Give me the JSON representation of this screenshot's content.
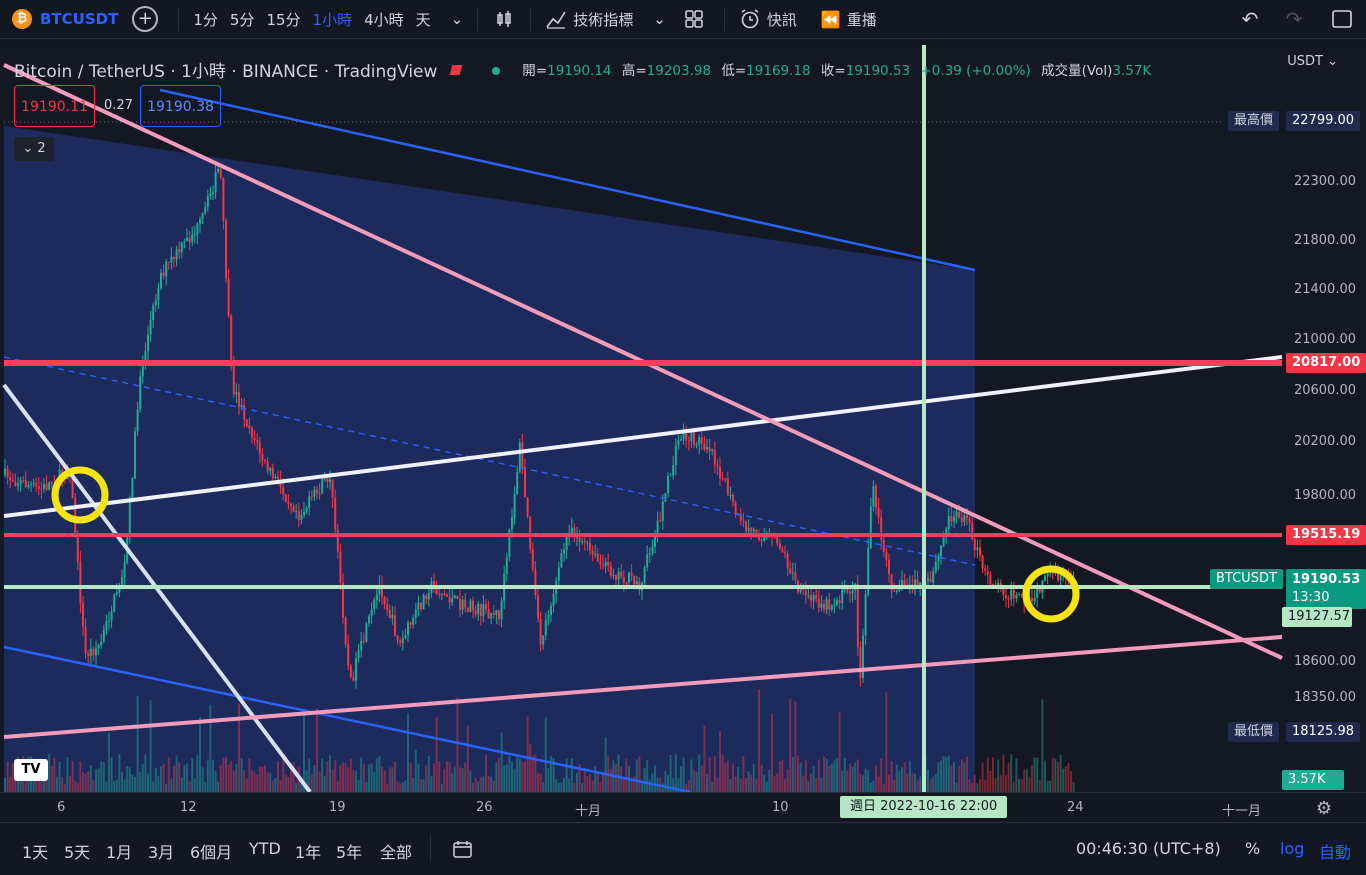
{
  "toolbar": {
    "symbol": "BTCUSDT",
    "coin_glyph": "₿",
    "intervals": [
      "1分",
      "5分",
      "15分",
      "1小時",
      "4小時",
      "天"
    ],
    "active_interval": "1小時",
    "indicators_label": "技術指標",
    "alert_label": "快訊",
    "replay_label": "重播"
  },
  "legend": {
    "title": "Bitcoin / TetherUS · 1小時 · BINANCE · TradingView",
    "ohlc": {
      "open_label": "開=",
      "open": "19190.14",
      "high_label": "高=",
      "high": "19203.98",
      "low_label": "低=",
      "low": "19169.18",
      "close_label": "收=",
      "close": "19190.53",
      "change": "+0.39 (+0.00%)",
      "volume_label": "成交量(Vol)",
      "volume": "3.57K"
    },
    "sell_price": "19190.11",
    "spread": "0.27",
    "buy_price": "19190.38",
    "collapsed_count": "2"
  },
  "price_axis": {
    "currency": "USDT",
    "ticks": [
      "22300.00",
      "21800.00",
      "21400.00",
      "21000.00",
      "20600.00",
      "20200.00",
      "19800.00",
      "18600.00",
      "18350.00"
    ],
    "high_label": "最高價",
    "high_value": "22799.00",
    "low_label": "最低價",
    "low_value": "18125.98",
    "line_20817": "20817.00",
    "line_19515": "19515.19",
    "symbol_tag": "BTCUSDT",
    "last_price": "19190.53",
    "countdown": "13:30",
    "crosshair_price": "19127.57",
    "volume_tag": "3.57K"
  },
  "time_axis": {
    "labels": [
      "6",
      "12",
      "19",
      "26",
      "十月",
      "10",
      "24",
      "十一月"
    ],
    "crosshair": "週日 2022-10-16   22:00"
  },
  "bottom_bar": {
    "ranges": [
      "1天",
      "5天",
      "1月",
      "3月",
      "6個月",
      "YTD",
      "1年",
      "5年",
      "全部"
    ],
    "clock": "00:46:30 (UTC+8)",
    "percent": "%",
    "log": "log",
    "auto": "自動"
  },
  "colors": {
    "background": "#131722",
    "up": "#22ab94",
    "down": "#f23645",
    "accent": "#2962ff",
    "highlight_green": "#b6e7c3",
    "marker_yellow": "#f5e312"
  }
}
